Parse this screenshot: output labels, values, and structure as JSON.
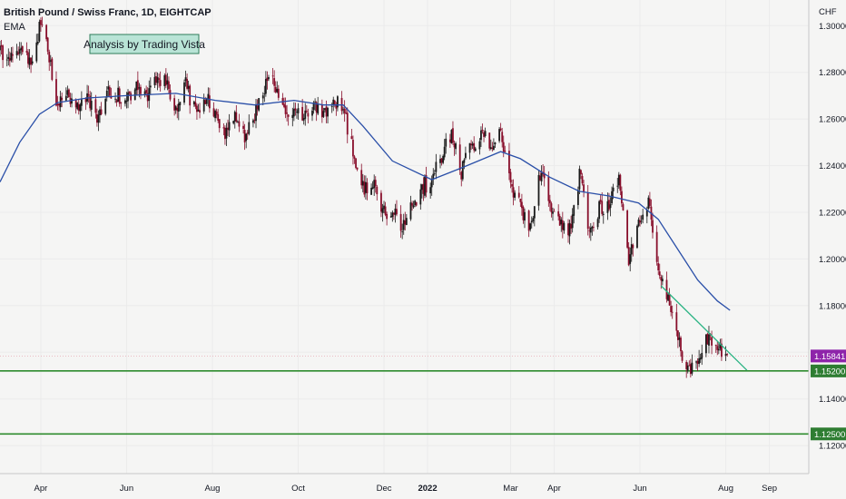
{
  "header": {
    "title": "British Pound / Swiss Franc, 1D, EIGHTCAP",
    "indicator": "EMA"
  },
  "annotation": {
    "text": "Analysis by Trading Vista"
  },
  "colors": {
    "background": "#f5f5f4",
    "candle_up": "#1a1a1a",
    "candle_down": "#880e2b",
    "ema": "#2a4fa8",
    "trendline": "#2bb383",
    "support": "#2e8b2e",
    "price_tag": "#8e24aa",
    "level_tag": "#2e7d32",
    "annotation_bg": "#b9e4d6",
    "annotation_border": "#2e7d5a"
  },
  "chart_data": {
    "type": "candlestick",
    "currency": "CHF",
    "ylim": [
      1.108,
      1.311
    ],
    "y_ticks": [
      "1.30000",
      "1.28000",
      "1.26000",
      "1.24000",
      "1.22000",
      "1.20000",
      "1.18000",
      "1.16000",
      "1.14000",
      "1.12000"
    ],
    "x_ticks": [
      "Apr",
      "Jun",
      "Aug",
      "Oct",
      "Dec",
      "2022",
      "Mar",
      "Apr",
      "Jun",
      "Aug",
      "Sep"
    ],
    "x_tick_dates": [
      "2021-04-01",
      "2021-06-01",
      "2021-08-01",
      "2021-10-01",
      "2021-12-01",
      "2022-01-01",
      "2022-03-01",
      "2022-04-01",
      "2022-06-01",
      "2022-08-01",
      "2022-09-01"
    ],
    "x_range": [
      "2021-03-03",
      "2022-09-29"
    ],
    "close_path": [
      [
        "2021-03-03",
        1.289
      ],
      [
        "2021-03-10",
        1.285
      ],
      [
        "2021-03-17",
        1.29
      ],
      [
        "2021-03-24",
        1.284
      ],
      [
        "2021-03-31",
        1.299
      ],
      [
        "2021-04-04",
        1.302
      ],
      [
        "2021-04-08",
        1.283
      ],
      [
        "2021-04-13",
        1.265
      ],
      [
        "2021-04-20",
        1.27
      ],
      [
        "2021-04-27",
        1.266
      ],
      [
        "2021-05-04",
        1.269
      ],
      [
        "2021-05-11",
        1.259
      ],
      [
        "2021-05-18",
        1.274
      ],
      [
        "2021-05-25",
        1.27
      ],
      [
        "2021-06-01",
        1.268
      ],
      [
        "2021-06-08",
        1.273
      ],
      [
        "2021-06-15",
        1.269
      ],
      [
        "2021-06-22",
        1.279
      ],
      [
        "2021-06-29",
        1.276
      ],
      [
        "2021-07-06",
        1.264
      ],
      [
        "2021-07-13",
        1.275
      ],
      [
        "2021-07-20",
        1.262
      ],
      [
        "2021-07-27",
        1.27
      ],
      [
        "2021-08-03",
        1.26
      ],
      [
        "2021-08-10",
        1.255
      ],
      [
        "2021-08-17",
        1.263
      ],
      [
        "2021-08-24",
        1.252
      ],
      [
        "2021-08-31",
        1.261
      ],
      [
        "2021-09-07",
        1.273
      ],
      [
        "2021-09-14",
        1.276
      ],
      [
        "2021-09-21",
        1.263
      ],
      [
        "2021-09-28",
        1.264
      ],
      [
        "2021-10-05",
        1.262
      ],
      [
        "2021-10-12",
        1.266
      ],
      [
        "2021-10-19",
        1.264
      ],
      [
        "2021-10-26",
        1.266
      ],
      [
        "2021-11-02",
        1.266
      ],
      [
        "2021-11-09",
        1.245
      ],
      [
        "2021-11-16",
        1.23
      ],
      [
        "2021-11-23",
        1.233
      ],
      [
        "2021-11-30",
        1.221
      ],
      [
        "2021-12-07",
        1.22
      ],
      [
        "2021-12-14",
        1.214
      ],
      [
        "2021-12-21",
        1.223
      ],
      [
        "2021-12-28",
        1.23
      ],
      [
        "2022-01-04",
        1.235
      ],
      [
        "2022-01-11",
        1.245
      ],
      [
        "2022-01-18",
        1.255
      ],
      [
        "2022-01-25",
        1.237
      ],
      [
        "2022-02-01",
        1.248
      ],
      [
        "2022-02-08",
        1.253
      ],
      [
        "2022-02-15",
        1.25
      ],
      [
        "2022-02-22",
        1.255
      ],
      [
        "2022-03-01",
        1.232
      ],
      [
        "2022-03-08",
        1.222
      ],
      [
        "2022-03-15",
        1.212
      ],
      [
        "2022-03-22",
        1.236
      ],
      [
        "2022-03-29",
        1.225
      ],
      [
        "2022-04-05",
        1.214
      ],
      [
        "2022-04-12",
        1.212
      ],
      [
        "2022-04-19",
        1.236
      ],
      [
        "2022-04-26",
        1.212
      ],
      [
        "2022-05-03",
        1.222
      ],
      [
        "2022-05-10",
        1.222
      ],
      [
        "2022-05-17",
        1.236
      ],
      [
        "2022-05-24",
        1.198
      ],
      [
        "2022-05-31",
        1.216
      ],
      [
        "2022-06-07",
        1.226
      ],
      [
        "2022-06-14",
        1.198
      ],
      [
        "2022-06-21",
        1.183
      ],
      [
        "2022-06-28",
        1.165
      ],
      [
        "2022-07-05",
        1.153
      ],
      [
        "2022-07-12",
        1.158
      ],
      [
        "2022-07-19",
        1.167
      ],
      [
        "2022-07-26",
        1.164
      ],
      [
        "2022-08-02",
        1.1584
      ]
    ],
    "ema_path": [
      [
        "2021-03-03",
        1.233
      ],
      [
        "2021-03-17",
        1.25
      ],
      [
        "2021-03-31",
        1.262
      ],
      [
        "2021-04-13",
        1.267
      ],
      [
        "2021-05-04",
        1.269
      ],
      [
        "2021-06-01",
        1.27
      ],
      [
        "2021-07-06",
        1.271
      ],
      [
        "2021-08-03",
        1.268
      ],
      [
        "2021-08-31",
        1.266
      ],
      [
        "2021-09-28",
        1.268
      ],
      [
        "2021-10-19",
        1.266
      ],
      [
        "2021-11-02",
        1.266
      ],
      [
        "2021-11-16",
        1.257
      ],
      [
        "2021-12-07",
        1.242
      ],
      [
        "2022-01-04",
        1.234
      ],
      [
        "2022-01-25",
        1.239
      ],
      [
        "2022-02-22",
        1.246
      ],
      [
        "2022-03-08",
        1.243
      ],
      [
        "2022-03-29",
        1.235
      ],
      [
        "2022-04-19",
        1.229
      ],
      [
        "2022-05-10",
        1.227
      ],
      [
        "2022-05-31",
        1.224
      ],
      [
        "2022-06-14",
        1.217
      ],
      [
        "2022-06-28",
        1.204
      ],
      [
        "2022-07-12",
        1.191
      ],
      [
        "2022-07-26",
        1.182
      ],
      [
        "2022-08-04",
        1.178
      ]
    ],
    "trendline": [
      [
        "2022-06-16",
        1.1885
      ],
      [
        "2022-08-16",
        1.1523
      ]
    ],
    "support_levels": [
      {
        "value": 1.152,
        "label": "1.15200"
      },
      {
        "value": 1.125,
        "label": "1.12500"
      }
    ],
    "current_price": {
      "value": 1.15841,
      "label": "1.15841"
    }
  }
}
